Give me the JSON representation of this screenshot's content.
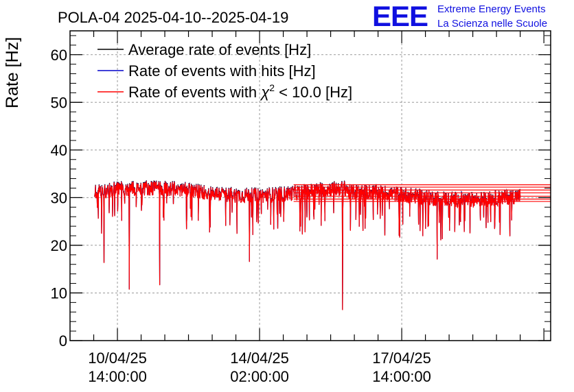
{
  "chart_data": {
    "type": "line",
    "title": "POLA-04 2025-04-10--2025-04-19",
    "ylabel": "Rate [Hz]",
    "xlabel": "",
    "ylim": [
      0,
      65
    ],
    "yticks": [
      0,
      10,
      20,
      30,
      40,
      50,
      60
    ],
    "grid": true,
    "legend_position": "top-left",
    "x_ticks": [
      {
        "date": "10/04/25",
        "time": "14:00:00",
        "hour": 14
      },
      {
        "date": "14/04/25",
        "time": "02:00:00",
        "hour": 98
      },
      {
        "date": "17/04/25",
        "time": "14:00:00",
        "hour": 182
      }
    ],
    "xlim_hours": [
      -14,
      270
    ],
    "data_range_hours": [
      0.5,
      252
    ],
    "series": [
      {
        "name": "Average rate of events [Hz]",
        "color": "#000000",
        "baseline": 30.5
      },
      {
        "name": "Rate of events with hits [Hz]",
        "color": "#0000cc",
        "baseline": 30.5
      },
      {
        "name": "Rate of events with χ² < 10.0 [Hz]",
        "color": "#ff0000",
        "baseline": 30.5
      }
    ],
    "legend": {
      "black_prefix": "Average rate of events [Hz]",
      "blue_prefix": "Rate of events with hits [Hz]",
      "red_prefix": "Rate of events with ",
      "red_chi": "χ",
      "red_sup": "2",
      "red_suffix": " < 10.0 [Hz]"
    },
    "notable_dips": [
      {
        "hour": 6,
        "value": 16.3
      },
      {
        "hour": 21,
        "value": 10.7
      },
      {
        "hour": 39,
        "value": 11.6
      },
      {
        "hour": 92,
        "value": 16.5
      },
      {
        "hour": 147,
        "value": 6.4
      },
      {
        "hour": 203,
        "value": 17.0
      }
    ]
  },
  "logo": {
    "mark": "EEE",
    "line1": "Extreme Energy Events",
    "line2": "La Scienza nelle Scuole"
  }
}
